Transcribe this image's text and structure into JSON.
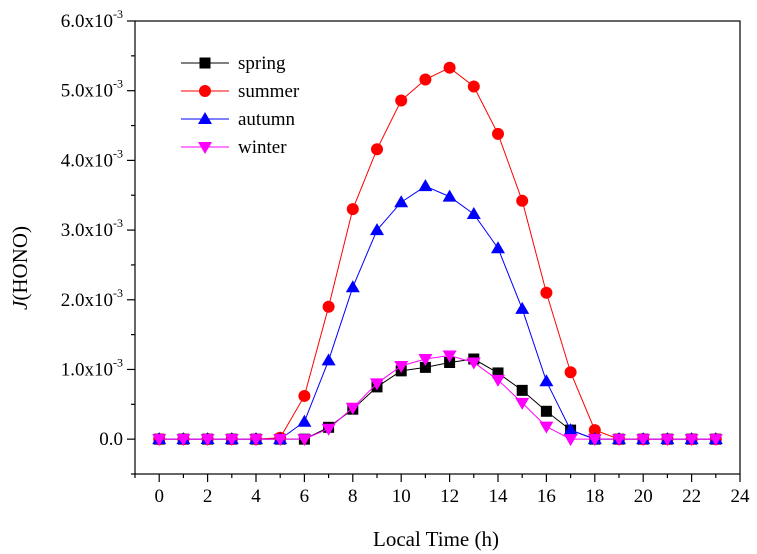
{
  "chart_data": {
    "type": "line",
    "title": "",
    "xlabel": "Local Time (h)",
    "ylabel_italic": "J",
    "ylabel_rest": "(HONO)",
    "xlim": [
      -1,
      24
    ],
    "ylim": [
      -0.0005,
      0.006
    ],
    "x_ticks": [
      0,
      2,
      4,
      6,
      8,
      10,
      12,
      14,
      16,
      18,
      20,
      22,
      24
    ],
    "y_ticks": [
      {
        "value": 0.0,
        "mant": "0.0",
        "exp": ""
      },
      {
        "value": 0.001,
        "mant": "1.0x10",
        "exp": "-3"
      },
      {
        "value": 0.002,
        "mant": "2.0x10",
        "exp": "-3"
      },
      {
        "value": 0.003,
        "mant": "3.0x10",
        "exp": "-3"
      },
      {
        "value": 0.004,
        "mant": "4.0x10",
        "exp": "-3"
      },
      {
        "value": 0.005,
        "mant": "5.0x10",
        "exp": "-3"
      },
      {
        "value": 0.006,
        "mant": "6.0x10",
        "exp": "-3"
      }
    ],
    "grid": false,
    "legend_position": "top-left",
    "x": [
      0,
      1,
      2,
      3,
      4,
      5,
      6,
      7,
      8,
      9,
      10,
      11,
      12,
      13,
      14,
      15,
      16,
      17,
      18,
      19,
      20,
      21,
      22,
      23
    ],
    "series": [
      {
        "name": "spring",
        "color": "#000000",
        "marker": "square",
        "values": [
          0,
          0,
          0,
          0,
          0,
          0,
          0,
          0.00017,
          0.00043,
          0.00075,
          0.00098,
          0.00103,
          0.0011,
          0.00115,
          0.00095,
          0.0007,
          0.0004,
          0.00013,
          0,
          0,
          0,
          0,
          0,
          0
        ]
      },
      {
        "name": "summer",
        "color": "#ff0000",
        "marker": "circle",
        "values": [
          0,
          0,
          0,
          0,
          0,
          2e-05,
          0.00062,
          0.0019,
          0.0033,
          0.00416,
          0.00486,
          0.00516,
          0.00533,
          0.00506,
          0.00438,
          0.00342,
          0.0021,
          0.00096,
          0.00013,
          0,
          0,
          0,
          0,
          0
        ]
      },
      {
        "name": "autumn",
        "color": "#0000ff",
        "marker": "triangle-up",
        "values": [
          0,
          0,
          0,
          0,
          0,
          0,
          0.00025,
          0.00113,
          0.00218,
          0.003,
          0.0034,
          0.00363,
          0.00348,
          0.00323,
          0.00274,
          0.00187,
          0.00083,
          0.00013,
          0,
          0,
          0,
          0,
          0,
          0
        ]
      },
      {
        "name": "winter",
        "color": "#ff00ff",
        "marker": "triangle-down",
        "values": [
          0,
          0,
          0,
          0,
          0,
          0,
          0,
          0.00015,
          0.00045,
          0.0008,
          0.00105,
          0.00115,
          0.0012,
          0.0011,
          0.00085,
          0.00052,
          0.00018,
          0,
          0,
          0,
          0,
          0,
          0,
          0
        ]
      }
    ]
  }
}
